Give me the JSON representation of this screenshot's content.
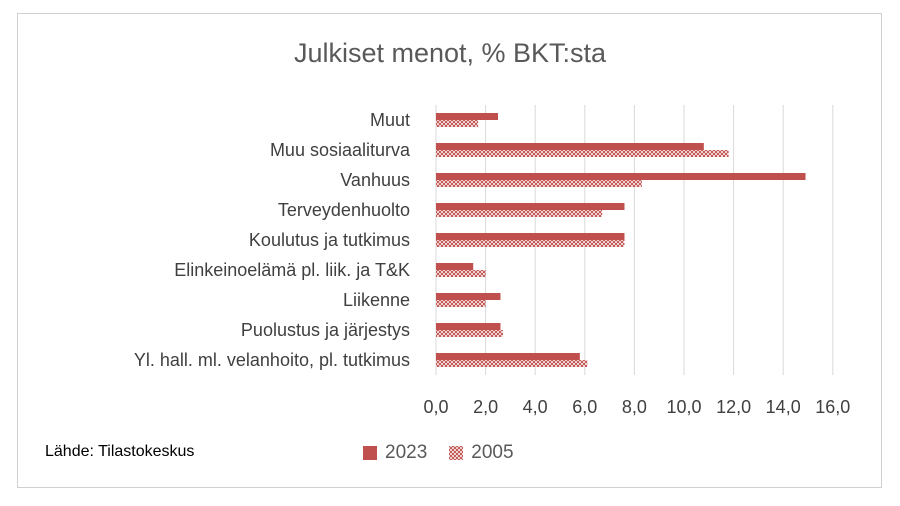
{
  "source": "Lähde: Tilastokeskus",
  "colors": {
    "series_2023": "#c0504d",
    "series_2005": "#c0504d",
    "grid": "#d9d9d9"
  },
  "chart_data": {
    "type": "bar",
    "orientation": "horizontal",
    "title": "Julkiset menot, % BKT:sta",
    "categories": [
      "Yl. hall. ml. velanhoito, pl. tutkimus",
      "Puolustus ja järjestys",
      "Liikenne",
      "Elinkeinoelämä pl. liik. ja T&K",
      "Koulutus ja tutkimus",
      "Terveydenhuolto",
      "Vanhuus",
      "Muu sosiaaliturva",
      "Muut"
    ],
    "series": [
      {
        "name": "2023",
        "pattern": "solid",
        "values": [
          5.8,
          2.6,
          2.6,
          1.5,
          7.6,
          7.6,
          14.9,
          10.8,
          2.5
        ]
      },
      {
        "name": "2005",
        "pattern": "crosshatch",
        "values": [
          6.1,
          2.7,
          2.0,
          2.0,
          7.6,
          6.7,
          8.3,
          11.8,
          1.7
        ]
      }
    ],
    "xlim": [
      0,
      16
    ],
    "ticks": [
      "0,0",
      "2,0",
      "4,0",
      "6,0",
      "8,0",
      "10,0",
      "12,0",
      "14,0",
      "16,0"
    ],
    "grid": "vertical",
    "legend": "bottom"
  }
}
